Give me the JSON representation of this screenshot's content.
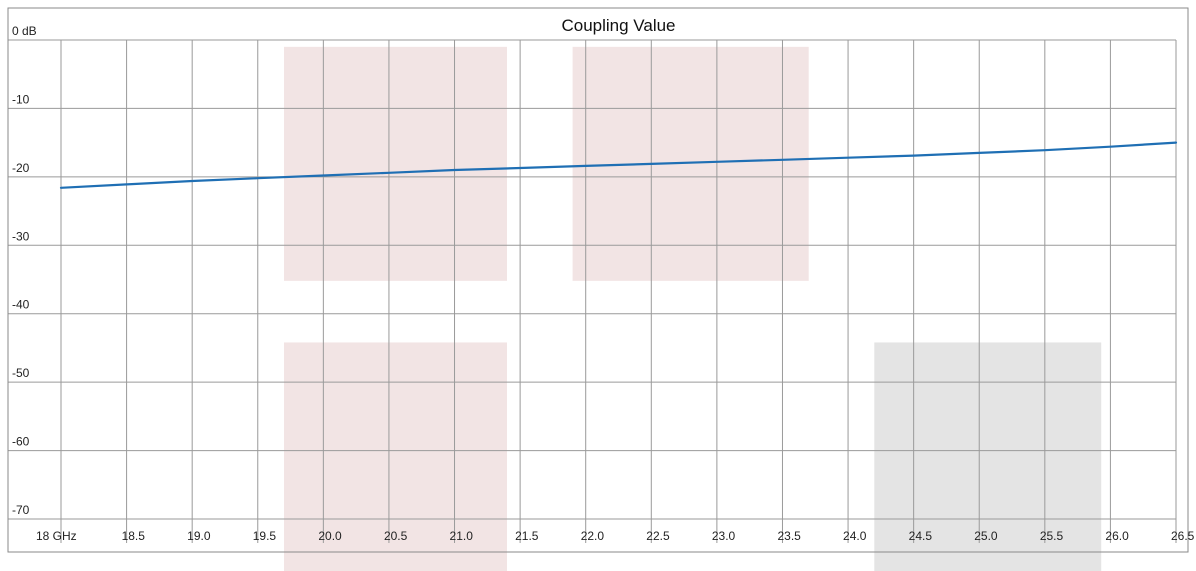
{
  "chart_data": {
    "type": "line",
    "title": "Coupling Value",
    "xlabel": "",
    "ylabel": "",
    "xlim": [
      18.0,
      26.5
    ],
    "ylim": [
      -70,
      0
    ],
    "grid": true,
    "x_ticks": [
      {
        "value": 18.0,
        "label": "18 GHz"
      },
      {
        "value": 18.5,
        "label": "18.5"
      },
      {
        "value": 19.0,
        "label": "19.0"
      },
      {
        "value": 19.5,
        "label": "19.5"
      },
      {
        "value": 20.0,
        "label": "20.0"
      },
      {
        "value": 20.5,
        "label": "20.5"
      },
      {
        "value": 21.0,
        "label": "21.0"
      },
      {
        "value": 21.5,
        "label": "21.5"
      },
      {
        "value": 22.0,
        "label": "22.0"
      },
      {
        "value": 22.5,
        "label": "22.5"
      },
      {
        "value": 23.0,
        "label": "23.0"
      },
      {
        "value": 23.5,
        "label": "23.5"
      },
      {
        "value": 24.0,
        "label": "24.0"
      },
      {
        "value": 24.5,
        "label": "24.5"
      },
      {
        "value": 25.0,
        "label": "25.0"
      },
      {
        "value": 25.5,
        "label": "25.5"
      },
      {
        "value": 26.0,
        "label": "26.0"
      },
      {
        "value": 26.5,
        "label": "26.5"
      }
    ],
    "y_ticks": [
      {
        "value": 0,
        "label": "0 dB"
      },
      {
        "value": -10,
        "label": "-10"
      },
      {
        "value": -20,
        "label": "-20"
      },
      {
        "value": -30,
        "label": "-30"
      },
      {
        "value": -40,
        "label": "-40"
      },
      {
        "value": -50,
        "label": "-50"
      },
      {
        "value": -60,
        "label": "-60"
      },
      {
        "value": -70,
        "label": "-70"
      }
    ],
    "series": [
      {
        "color": "#1f6fb4",
        "x": [
          18.0,
          18.5,
          19.0,
          19.5,
          20.0,
          20.5,
          21.0,
          21.5,
          22.0,
          22.5,
          23.0,
          23.5,
          24.0,
          24.5,
          25.0,
          25.5,
          26.0,
          26.5
        ],
        "y": [
          -21.6,
          -21.1,
          -20.6,
          -20.2,
          -19.8,
          -19.4,
          -19.0,
          -18.7,
          -18.4,
          -18.1,
          -17.8,
          -17.5,
          -17.2,
          -16.9,
          -16.5,
          -16.1,
          -15.6,
          -15.0
        ]
      }
    ],
    "regions": [
      {
        "x0": 19.7,
        "x1": 21.4,
        "y0": -35.2,
        "y1": -1.0,
        "color": "#f2e4e4"
      },
      {
        "x0": 21.9,
        "x1": 23.7,
        "y0": -35.2,
        "y1": -1.0,
        "color": "#f2e4e4"
      },
      {
        "x0": 19.7,
        "x1": 21.4,
        "y0": -79.0,
        "y1": -44.2,
        "color": "#f2e4e4"
      },
      {
        "x0": 24.2,
        "x1": 25.93,
        "y0": -79.0,
        "y1": -44.2,
        "color": "#e4e4e4"
      }
    ]
  }
}
